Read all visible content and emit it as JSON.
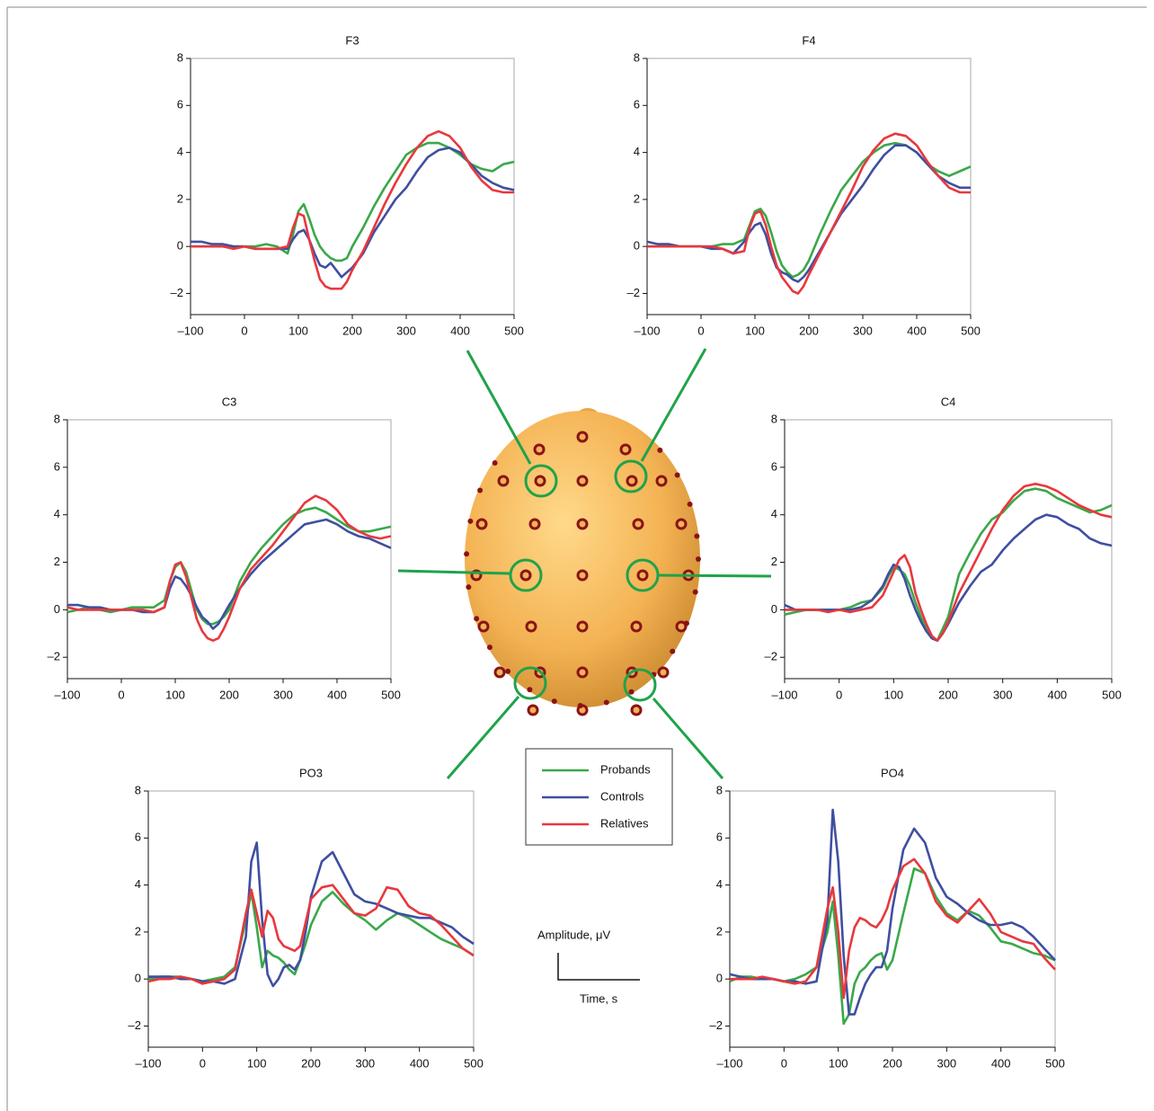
{
  "chart_data": [
    {
      "type": "line",
      "title": "F3",
      "x": [
        -100,
        -80,
        -60,
        -40,
        -20,
        0,
        20,
        40,
        60,
        80,
        90,
        100,
        110,
        120,
        130,
        140,
        150,
        160,
        170,
        180,
        190,
        200,
        220,
        240,
        260,
        280,
        300,
        320,
        340,
        360,
        380,
        400,
        420,
        440,
        460,
        480,
        500
      ],
      "series": [
        {
          "name": "Probands",
          "color": "#3aa84a",
          "values": [
            0,
            0,
            0,
            0,
            0,
            0,
            0,
            0.1,
            0,
            -0.3,
            0.5,
            1.5,
            1.8,
            1.2,
            0.5,
            0,
            -0.3,
            -0.5,
            -0.6,
            -0.6,
            -0.5,
            0,
            0.8,
            1.7,
            2.5,
            3.2,
            3.9,
            4.2,
            4.4,
            4.4,
            4.2,
            3.9,
            3.5,
            3.3,
            3.2,
            3.5,
            3.6
          ]
        },
        {
          "name": "Controls",
          "color": "#3f4fa0",
          "values": [
            0.2,
            0.2,
            0.1,
            0.1,
            0,
            0,
            -0.1,
            -0.1,
            -0.1,
            -0.1,
            0.3,
            0.6,
            0.7,
            0.3,
            -0.3,
            -0.8,
            -0.9,
            -0.7,
            -1.0,
            -1.3,
            -1.1,
            -0.9,
            -0.3,
            0.6,
            1.3,
            2.0,
            2.5,
            3.2,
            3.8,
            4.1,
            4.2,
            4.0,
            3.5,
            3.0,
            2.7,
            2.5,
            2.4
          ]
        },
        {
          "name": "Relatives",
          "color": "#e8383d",
          "values": [
            0,
            0,
            0,
            0,
            -0.1,
            0,
            -0.1,
            -0.1,
            -0.1,
            0,
            0.8,
            1.4,
            1.3,
            0.3,
            -0.6,
            -1.4,
            -1.7,
            -1.8,
            -1.8,
            -1.8,
            -1.5,
            -1.0,
            -0.2,
            0.8,
            1.8,
            2.7,
            3.5,
            4.2,
            4.7,
            4.9,
            4.7,
            4.2,
            3.4,
            2.8,
            2.4,
            2.3,
            2.3
          ]
        }
      ],
      "xlim": [
        -100,
        500
      ],
      "ylim": [
        -2.9,
        8
      ],
      "xticks": [
        {
          "value": -100,
          "label": "–100"
        },
        0,
        100,
        200,
        300,
        400,
        500
      ],
      "yticks": [
        {
          "value": -2,
          "label": "–2"
        },
        0,
        2,
        4,
        6,
        8
      ]
    },
    {
      "type": "line",
      "title": "F4",
      "x": [
        -100,
        -80,
        -60,
        -40,
        -20,
        0,
        20,
        40,
        60,
        80,
        90,
        100,
        110,
        120,
        130,
        140,
        150,
        160,
        170,
        180,
        190,
        200,
        220,
        240,
        260,
        280,
        300,
        320,
        340,
        360,
        380,
        400,
        420,
        440,
        460,
        480,
        500
      ],
      "series": [
        {
          "name": "Probands",
          "color": "#3aa84a",
          "values": [
            0,
            0,
            0.1,
            0,
            0,
            0,
            0,
            0.1,
            0.1,
            0.3,
            0.9,
            1.5,
            1.6,
            1.3,
            0.6,
            -0.2,
            -0.8,
            -1.1,
            -1.3,
            -1.2,
            -1.0,
            -0.6,
            0.5,
            1.5,
            2.4,
            3.0,
            3.6,
            4.0,
            4.3,
            4.4,
            4.3,
            4.0,
            3.5,
            3.2,
            3.0,
            3.2,
            3.4
          ]
        },
        {
          "name": "Controls",
          "color": "#3f4fa0",
          "values": [
            0.2,
            0.1,
            0.1,
            0,
            0,
            0,
            -0.1,
            -0.1,
            -0.3,
            0.2,
            0.6,
            0.9,
            1.0,
            0.5,
            -0.3,
            -0.9,
            -1.1,
            -1.2,
            -1.4,
            -1.5,
            -1.3,
            -1.0,
            -0.2,
            0.6,
            1.4,
            2.0,
            2.6,
            3.3,
            3.9,
            4.3,
            4.3,
            4.0,
            3.5,
            3.0,
            2.7,
            2.5,
            2.5
          ]
        },
        {
          "name": "Relatives",
          "color": "#e8383d",
          "values": [
            0,
            0,
            0,
            0,
            0,
            0,
            0,
            -0.1,
            -0.3,
            -0.2,
            0.8,
            1.4,
            1.5,
            0.9,
            0,
            -0.8,
            -1.3,
            -1.6,
            -1.9,
            -2.0,
            -1.7,
            -1.2,
            -0.3,
            0.6,
            1.5,
            2.4,
            3.4,
            4.1,
            4.6,
            4.8,
            4.7,
            4.3,
            3.6,
            3.0,
            2.5,
            2.3,
            2.3
          ]
        }
      ],
      "xlim": [
        -100,
        500
      ],
      "ylim": [
        -2.9,
        8
      ],
      "xticks": [
        {
          "value": -100,
          "label": "–100"
        },
        0,
        100,
        200,
        300,
        400,
        500
      ],
      "yticks": [
        {
          "value": -2,
          "label": "–2"
        },
        0,
        2,
        4,
        6,
        8
      ]
    },
    {
      "type": "line",
      "title": "C3",
      "x": [
        -100,
        -80,
        -60,
        -40,
        -20,
        0,
        20,
        40,
        60,
        80,
        90,
        100,
        110,
        120,
        130,
        140,
        150,
        160,
        170,
        180,
        190,
        200,
        220,
        240,
        260,
        280,
        300,
        320,
        340,
        360,
        380,
        400,
        420,
        440,
        460,
        480,
        500
      ],
      "series": [
        {
          "name": "Probands",
          "color": "#3aa84a",
          "values": [
            -0.1,
            0,
            0.1,
            0,
            -0.1,
            0,
            0.1,
            0.1,
            0.1,
            0.4,
            1.2,
            1.8,
            2.0,
            1.6,
            0.8,
            0,
            -0.4,
            -0.6,
            -0.6,
            -0.5,
            -0.3,
            0,
            1.2,
            2.0,
            2.6,
            3.1,
            3.6,
            4.0,
            4.2,
            4.3,
            4.1,
            3.8,
            3.5,
            3.3,
            3.3,
            3.4,
            3.5
          ]
        },
        {
          "name": "Controls",
          "color": "#3f4fa0",
          "values": [
            0.2,
            0.2,
            0.1,
            0.1,
            0,
            0,
            0,
            -0.1,
            -0.1,
            0.1,
            0.9,
            1.4,
            1.3,
            1.0,
            0.6,
            0.1,
            -0.3,
            -0.5,
            -0.8,
            -0.6,
            -0.2,
            0.2,
            0.9,
            1.5,
            2.0,
            2.4,
            2.8,
            3.2,
            3.6,
            3.7,
            3.8,
            3.6,
            3.3,
            3.1,
            3.0,
            2.8,
            2.6
          ]
        },
        {
          "name": "Relatives",
          "color": "#e8383d",
          "values": [
            0.1,
            0,
            0,
            0,
            0,
            0,
            0,
            0,
            -0.1,
            0.1,
            1.2,
            1.9,
            2.0,
            1.4,
            0.5,
            -0.4,
            -0.9,
            -1.2,
            -1.3,
            -1.2,
            -0.8,
            -0.3,
            0.9,
            1.7,
            2.2,
            2.7,
            3.3,
            3.9,
            4.5,
            4.8,
            4.6,
            4.2,
            3.6,
            3.3,
            3.1,
            3.0,
            3.1
          ]
        }
      ],
      "xlim": [
        -100,
        500
      ],
      "ylim": [
        -2.9,
        8
      ],
      "xticks": [
        {
          "value": -100,
          "label": "–100"
        },
        0,
        100,
        200,
        300,
        400,
        500
      ],
      "yticks": [
        {
          "value": -2,
          "label": "–2"
        },
        0,
        2,
        4,
        6,
        8
      ]
    },
    {
      "type": "line",
      "title": "C4",
      "x": [
        -100,
        -80,
        -60,
        -40,
        -20,
        0,
        20,
        40,
        60,
        80,
        90,
        100,
        110,
        120,
        130,
        140,
        150,
        160,
        170,
        180,
        190,
        200,
        220,
        240,
        260,
        280,
        300,
        320,
        340,
        360,
        380,
        400,
        420,
        440,
        460,
        480,
        500
      ],
      "series": [
        {
          "name": "Probands",
          "color": "#3aa84a",
          "values": [
            -0.2,
            -0.1,
            0,
            0,
            0,
            0,
            0.1,
            0.3,
            0.4,
            0.9,
            1.4,
            1.8,
            1.7,
            1.5,
            1.0,
            0.3,
            -0.3,
            -0.8,
            -1.2,
            -1.3,
            -0.8,
            -0.3,
            1.5,
            2.4,
            3.2,
            3.8,
            4.1,
            4.6,
            5.0,
            5.1,
            5.0,
            4.7,
            4.5,
            4.3,
            4.1,
            4.2,
            4.4
          ]
        },
        {
          "name": "Controls",
          "color": "#3f4fa0",
          "values": [
            0.2,
            0,
            0,
            0,
            0,
            0,
            0,
            0.1,
            0.4,
            1.0,
            1.5,
            1.9,
            1.8,
            1.3,
            0.6,
            0,
            -0.5,
            -0.9,
            -1.2,
            -1.3,
            -1.0,
            -0.6,
            0.3,
            1.0,
            1.6,
            1.9,
            2.5,
            3.0,
            3.4,
            3.8,
            4.0,
            3.9,
            3.6,
            3.4,
            3.0,
            2.8,
            2.7
          ]
        },
        {
          "name": "Relatives",
          "color": "#e8383d",
          "values": [
            0,
            0,
            0,
            0,
            -0.1,
            0,
            -0.1,
            0,
            0.1,
            0.6,
            1.1,
            1.6,
            2.1,
            2.3,
            1.8,
            0.7,
            0,
            -0.6,
            -1.1,
            -1.3,
            -1.0,
            -0.5,
            0.7,
            1.6,
            2.5,
            3.4,
            4.2,
            4.8,
            5.2,
            5.3,
            5.2,
            5.0,
            4.7,
            4.4,
            4.2,
            4.0,
            3.9
          ]
        }
      ],
      "xlim": [
        -100,
        500
      ],
      "ylim": [
        -2.9,
        8
      ],
      "xticks": [
        {
          "value": -100,
          "label": "–100"
        },
        0,
        100,
        200,
        300,
        400,
        500
      ],
      "yticks": [
        {
          "value": -2,
          "label": "–2"
        },
        0,
        2,
        4,
        6,
        8
      ]
    },
    {
      "type": "line",
      "title": "PO3",
      "x": [
        -100,
        -80,
        -60,
        -40,
        -20,
        0,
        20,
        40,
        60,
        80,
        90,
        100,
        110,
        120,
        130,
        140,
        150,
        160,
        170,
        180,
        190,
        200,
        220,
        240,
        260,
        280,
        300,
        320,
        340,
        360,
        380,
        400,
        420,
        440,
        460,
        480,
        500
      ],
      "series": [
        {
          "name": "Probands",
          "color": "#3aa84a",
          "values": [
            0,
            0.1,
            0.1,
            0.1,
            0,
            -0.1,
            0,
            0.1,
            0.5,
            2.5,
            3.7,
            2.2,
            0.5,
            1.2,
            1.0,
            0.9,
            0.7,
            0.4,
            0.2,
            0.8,
            1.5,
            2.3,
            3.3,
            3.7,
            3.2,
            2.8,
            2.5,
            2.1,
            2.5,
            2.8,
            2.6,
            2.3,
            2.0,
            1.7,
            1.5,
            1.3,
            1.0
          ]
        },
        {
          "name": "Controls",
          "color": "#3f4fa0",
          "values": [
            0.1,
            0.1,
            0.1,
            0,
            0,
            -0.1,
            -0.1,
            -0.2,
            0,
            1.8,
            5.0,
            5.8,
            2.5,
            0.2,
            -0.3,
            0,
            0.5,
            0.6,
            0.4,
            0.8,
            2.0,
            3.5,
            5.0,
            5.4,
            4.5,
            3.6,
            3.3,
            3.2,
            3.0,
            2.8,
            2.7,
            2.6,
            2.6,
            2.4,
            2.2,
            1.8,
            1.5
          ]
        },
        {
          "name": "Relatives",
          "color": "#e8383d",
          "values": [
            -0.1,
            0,
            0,
            0.1,
            0,
            -0.2,
            -0.1,
            0,
            0.4,
            2.8,
            3.8,
            2.8,
            1.8,
            2.9,
            2.6,
            1.7,
            1.4,
            1.3,
            1.2,
            1.4,
            2.4,
            3.4,
            3.9,
            4.0,
            3.4,
            2.8,
            2.7,
            3.0,
            3.9,
            3.8,
            3.1,
            2.8,
            2.7,
            2.3,
            1.8,
            1.3,
            1.0
          ]
        }
      ],
      "xlim": [
        -100,
        500
      ],
      "ylim": [
        -2.9,
        8
      ],
      "xticks": [
        {
          "value": -100,
          "label": "–100"
        },
        0,
        100,
        200,
        300,
        400,
        500
      ],
      "yticks": [
        {
          "value": -2,
          "label": "–2"
        },
        0,
        2,
        4,
        6,
        8
      ]
    },
    {
      "type": "line",
      "title": "PO4",
      "x": [
        -100,
        -80,
        -60,
        -40,
        -20,
        0,
        20,
        40,
        60,
        80,
        90,
        100,
        110,
        120,
        130,
        140,
        150,
        160,
        170,
        180,
        190,
        200,
        220,
        240,
        260,
        280,
        300,
        320,
        340,
        360,
        380,
        400,
        420,
        440,
        460,
        480,
        500
      ],
      "series": [
        {
          "name": "Probands",
          "color": "#3aa84a",
          "values": [
            -0.1,
            0.1,
            0.1,
            0,
            0,
            -0.1,
            0,
            0.2,
            0.5,
            2.0,
            3.3,
            1.0,
            -1.9,
            -1.5,
            -0.2,
            0.3,
            0.5,
            0.8,
            1.0,
            1.1,
            0.4,
            0.8,
            2.8,
            4.7,
            4.5,
            3.5,
            2.8,
            2.5,
            2.9,
            2.7,
            2.2,
            1.6,
            1.5,
            1.3,
            1.1,
            1.0,
            0.8
          ]
        },
        {
          "name": "Controls",
          "color": "#3f4fa0",
          "values": [
            0.2,
            0.1,
            0,
            0,
            0,
            -0.1,
            -0.1,
            -0.2,
            -0.1,
            2.5,
            7.2,
            5.0,
            1.0,
            -1.5,
            -1.5,
            -0.8,
            -0.2,
            0.2,
            0.5,
            0.5,
            1.2,
            3.0,
            5.5,
            6.4,
            5.8,
            4.3,
            3.5,
            3.2,
            2.8,
            2.5,
            2.3,
            2.3,
            2.4,
            2.2,
            1.8,
            1.3,
            0.8
          ]
        },
        {
          "name": "Relatives",
          "color": "#e8383d",
          "values": [
            0,
            0,
            0,
            0.1,
            0,
            -0.1,
            -0.2,
            -0.1,
            0.5,
            3.0,
            3.9,
            2.0,
            -0.8,
            1.2,
            2.2,
            2.6,
            2.5,
            2.3,
            2.2,
            2.5,
            3.0,
            3.8,
            4.8,
            5.1,
            4.5,
            3.3,
            2.7,
            2.4,
            2.9,
            3.4,
            2.8,
            2.0,
            1.8,
            1.6,
            1.5,
            0.9,
            0.4
          ]
        }
      ],
      "xlim": [
        -100,
        500
      ],
      "ylim": [
        -2.9,
        8
      ],
      "xticks": [
        {
          "value": -100,
          "label": "–100"
        },
        0,
        100,
        200,
        300,
        400,
        500
      ],
      "yticks": [
        {
          "value": -2,
          "label": "–2"
        },
        0,
        2,
        4,
        6,
        8
      ]
    }
  ],
  "scale_bar": {
    "y_label": "Amplitude, μV",
    "x_label": "Time, s"
  }
}
